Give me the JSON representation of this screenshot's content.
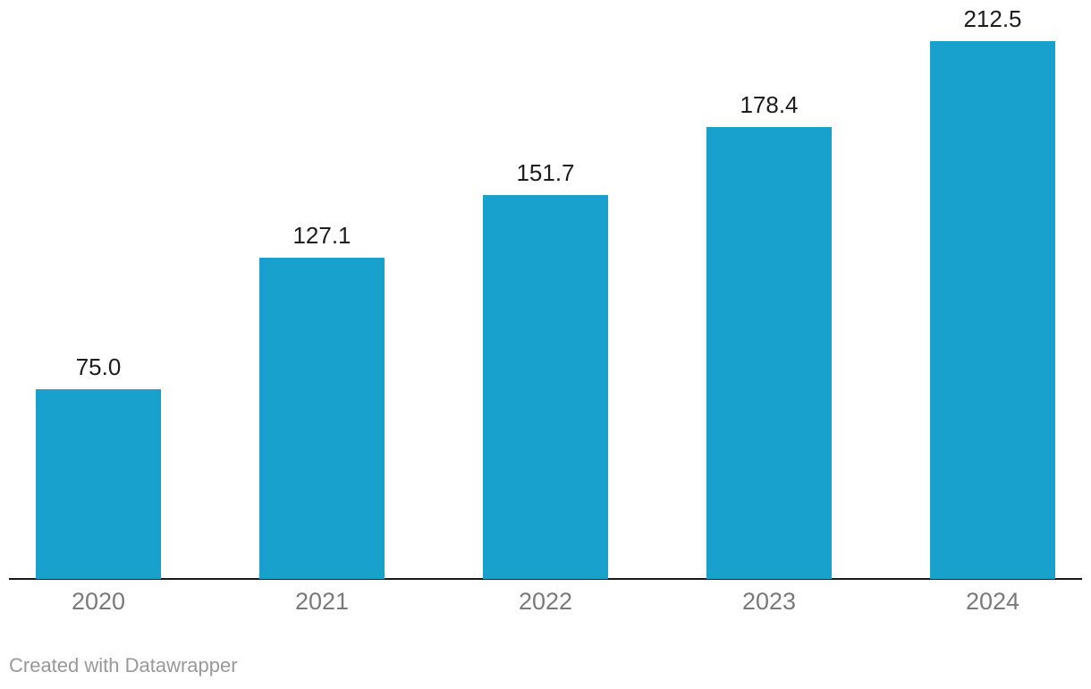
{
  "chart_data": {
    "type": "bar",
    "categories": [
      "2020",
      "2021",
      "2022",
      "2023",
      "2024"
    ],
    "values": [
      75.0,
      127.1,
      151.7,
      178.4,
      212.5
    ],
    "value_labels": [
      "75.0",
      "127.1",
      "151.7",
      "178.4",
      "212.5"
    ],
    "title": "",
    "xlabel": "",
    "ylabel": "",
    "ylim": [
      0,
      220
    ],
    "grid": false,
    "legend": "none",
    "bar_color": "#18a1cc",
    "value_label_color": "#1d1d1d",
    "tick_label_color": "#7a7a7a",
    "axis_color": "#1a1a1a"
  },
  "footer": {
    "credit": "Created with Datawrapper"
  }
}
